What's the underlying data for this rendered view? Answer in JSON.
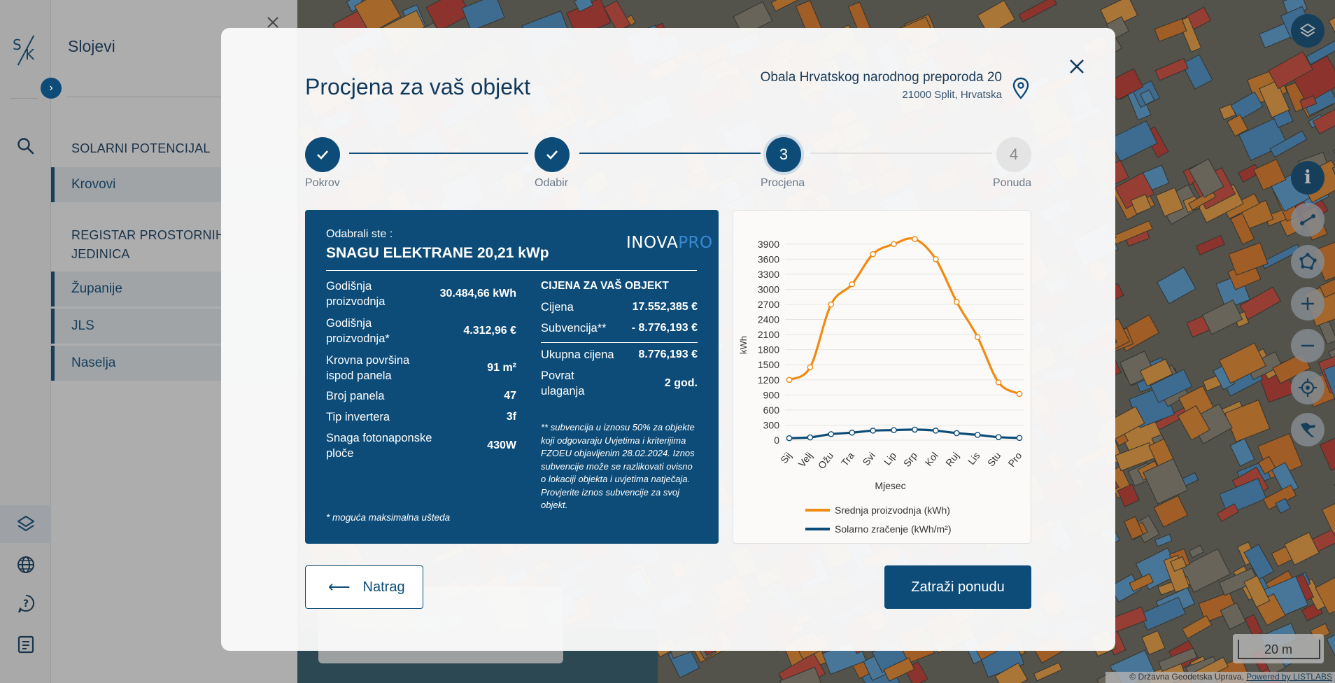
{
  "sidebar": {
    "logo_s": "S",
    "logo_k": "K",
    "title": "Slojevi",
    "section1": "SOLARNI POTENCIJAL",
    "section1_items": [
      "Krovovi"
    ],
    "section2": "REGISTAR PROSTORNIH JEDINICA",
    "section2_items": [
      "Županije",
      "JLS",
      "Naselja"
    ],
    "rail_icons": [
      "search-icon",
      "layers-icon",
      "globe-icon",
      "help-icon",
      "document-icon"
    ]
  },
  "modal": {
    "title": "Procjena za vaš objekt",
    "address_line1": "Obala Hrvatskog narodnog preporoda 20",
    "address_line2": "21000 Split, Hrvatska",
    "steps": [
      {
        "label": "Pokrov",
        "state": "done",
        "number": ""
      },
      {
        "label": "Odabir",
        "state": "done",
        "number": ""
      },
      {
        "label": "Procjena",
        "state": "current",
        "number": "3"
      },
      {
        "label": "Ponuda",
        "state": "todo",
        "number": "4"
      }
    ],
    "summary": {
      "selected_label": "Odabrali ste :",
      "power": "SNAGU ELEKTRANE 20,21 kWp",
      "logo_main": "INOVA",
      "logo_accent": "PRO",
      "rows": [
        {
          "label": "Godišnja proizvodnja",
          "value": "30.484,66 kWh"
        },
        {
          "label": "Godišnja proizvodnja*",
          "value": "4.312,96 €"
        },
        {
          "label": "Krovna površina ispod panela",
          "value": "91 m²"
        },
        {
          "label": "Broj panela",
          "value": "47"
        },
        {
          "label": "Tip invertera",
          "value": "3f"
        },
        {
          "label": "Snaga fotonaponske ploče",
          "value": "430W"
        }
      ],
      "price_title": "CIJENA ZA VAŠ OBJEKT",
      "price_rows": [
        {
          "label": "Cijena",
          "value": "17.552,385 €"
        },
        {
          "label": "Subvencija**",
          "value": "- 8.776,193 €"
        },
        {
          "label": "Ukupna cijena",
          "value": "8.776,193 €"
        },
        {
          "label": "Povrat ulaganja",
          "value": "2 god."
        }
      ],
      "note": "** subvencija u iznosu 50% za objekte koji odgovaraju Uvjetima i kriterijima FZOEU objavljenim 28.02.2024. Iznos subvencije može se razlikovati ovisno o lokaciji objekta i uvjetima natječaja. Provjerite iznos subvencije za svoj objekt.",
      "footnote": "* moguća maksimalna ušteda"
    },
    "back_label": "Natrag",
    "offer_label": "Zatraži ponudu"
  },
  "map": {
    "scale_label": "20 m",
    "attribution": "© Državna Geodetska Uprava, ",
    "attribution_link": "Powered by LISTLABS"
  },
  "chart_data": {
    "type": "line",
    "categories": [
      "Sij",
      "Velj",
      "Ožu",
      "Tra",
      "Svi",
      "Lip",
      "Srp",
      "Kol",
      "Ruj",
      "Lis",
      "Stu",
      "Pro"
    ],
    "series": [
      {
        "name": "Srednja proizvodnja (kWh)",
        "color": "#f08a12",
        "values": [
          1200,
          1450,
          2700,
          3100,
          3700,
          3900,
          4000,
          3600,
          2750,
          2050,
          1150,
          920
        ]
      },
      {
        "name": "Solarno zračenje (kWh/m²)",
        "color": "#0d4c78",
        "values": [
          40,
          55,
          120,
          150,
          190,
          200,
          210,
          190,
          140,
          105,
          60,
          45
        ]
      }
    ],
    "xlabel": "Mjesec",
    "ylabel": "kWh",
    "yticks": [
      0,
      300,
      600,
      900,
      1200,
      1500,
      1800,
      2100,
      2400,
      2700,
      3000,
      3300,
      3600,
      3900
    ],
    "ylim": [
      0,
      4050
    ],
    "grid": true,
    "legend": "bottom"
  }
}
